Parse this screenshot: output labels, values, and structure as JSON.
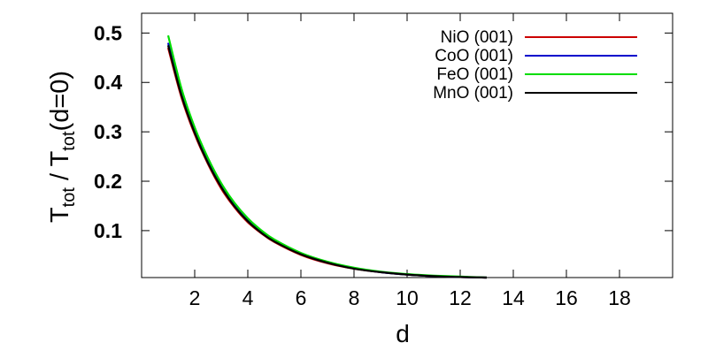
{
  "chart_data": {
    "type": "line",
    "title": "",
    "xlabel": "d",
    "ylabel": {
      "text1": "T",
      "sub1": "tot",
      "text2": " / T",
      "sub2": "tot",
      "text3": "(d=0)"
    },
    "xlim": [
      0,
      20
    ],
    "ylim": [
      0.005,
      0.54
    ],
    "x_ticks": [
      "2",
      "4",
      "6",
      "8",
      "10",
      "12",
      "14",
      "16",
      "18"
    ],
    "y_ticks": [
      "0.1",
      "0.2",
      "0.3",
      "0.4",
      "0.5"
    ],
    "grid": false,
    "legend_position": "top-right",
    "x": [
      1,
      1.5,
      2,
      2.5,
      3,
      3.5,
      4,
      4.5,
      5,
      6,
      7,
      8,
      9,
      10,
      11,
      12,
      13
    ],
    "series": [
      {
        "name": "NiO (001)",
        "color": "#cc0000",
        "values": [
          0.47,
          0.37,
          0.295,
          0.235,
          0.185,
          0.147,
          0.117,
          0.095,
          0.077,
          0.051,
          0.034,
          0.023,
          0.016,
          0.011,
          0.008,
          0.006,
          0.005
        ]
      },
      {
        "name": "CoO (001)",
        "color": "#0000cc",
        "values": [
          0.48,
          0.378,
          0.301,
          0.24,
          0.19,
          0.151,
          0.12,
          0.097,
          0.079,
          0.053,
          0.035,
          0.024,
          0.016,
          0.011,
          0.008,
          0.006,
          0.005
        ]
      },
      {
        "name": "FeO (001)",
        "color": "#00dd00",
        "values": [
          0.495,
          0.388,
          0.309,
          0.247,
          0.196,
          0.156,
          0.125,
          0.101,
          0.082,
          0.055,
          0.037,
          0.025,
          0.017,
          0.012,
          0.009,
          0.007,
          0.005
        ]
      },
      {
        "name": "MnO (001)",
        "color": "#000000",
        "values": [
          0.475,
          0.374,
          0.298,
          0.237,
          0.188,
          0.149,
          0.119,
          0.096,
          0.078,
          0.052,
          0.035,
          0.023,
          0.016,
          0.011,
          0.008,
          0.006,
          0.005
        ]
      }
    ]
  }
}
